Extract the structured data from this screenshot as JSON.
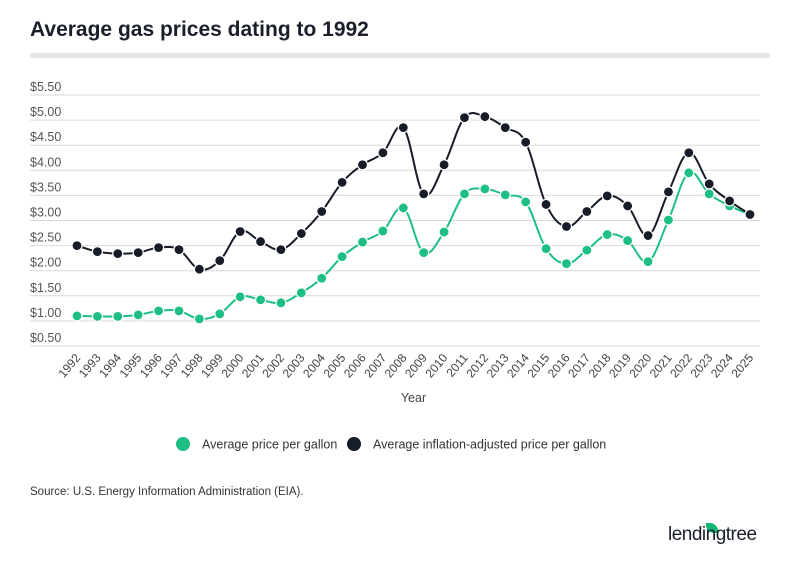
{
  "title": "Average gas prices dating to 1992",
  "source": "Source: U.S. Energy Information Administration (EIA).",
  "logo": "lendingtree",
  "chart_data": {
    "type": "line",
    "title": "Average gas prices dating to 1992",
    "xlabel": "Year",
    "ylabel": "",
    "ylim": [
      0.5,
      5.5
    ],
    "yticks": [
      "$0.50",
      "$1.00",
      "$1.50",
      "$2.00",
      "$2.50",
      "$3.00",
      "$3.50",
      "$4.00",
      "$4.50",
      "$5.00",
      "$5.50"
    ],
    "grid": true,
    "legend": "bottom",
    "x": [
      "1992",
      "1993",
      "1994",
      "1995",
      "1996",
      "1997",
      "1998",
      "1999",
      "2000",
      "2001",
      "2002",
      "2003",
      "2004",
      "2005",
      "2006",
      "2007",
      "2008",
      "2009",
      "2010",
      "2011",
      "2012",
      "2013",
      "2014",
      "2015",
      "2016",
      "2017",
      "2018",
      "2019",
      "2020",
      "2021",
      "2022",
      "2023",
      "2024",
      "2025"
    ],
    "series": [
      {
        "name": "Average price per gallon",
        "color": "#1dbf82",
        "values": [
          1.1,
          1.09,
          1.09,
          1.12,
          1.2,
          1.2,
          1.04,
          1.14,
          1.48,
          1.42,
          1.36,
          1.56,
          1.85,
          2.28,
          2.57,
          2.79,
          3.25,
          2.36,
          2.77,
          3.53,
          3.63,
          3.51,
          3.37,
          2.44,
          2.14,
          2.41,
          2.72,
          2.6,
          2.18,
          3.01,
          3.95,
          3.53,
          3.29,
          3.12
        ]
      },
      {
        "name": "Average inflation-adjusted price per gallon",
        "color": "#161c28",
        "values": [
          2.5,
          2.38,
          2.34,
          2.36,
          2.46,
          2.42,
          2.03,
          2.2,
          2.78,
          2.58,
          2.42,
          2.74,
          3.18,
          3.76,
          4.11,
          4.35,
          4.85,
          3.53,
          4.11,
          5.05,
          5.07,
          4.85,
          4.56,
          3.32,
          2.88,
          3.18,
          3.49,
          3.29,
          2.7,
          3.57,
          4.35,
          3.73,
          3.39,
          3.12
        ]
      }
    ]
  }
}
